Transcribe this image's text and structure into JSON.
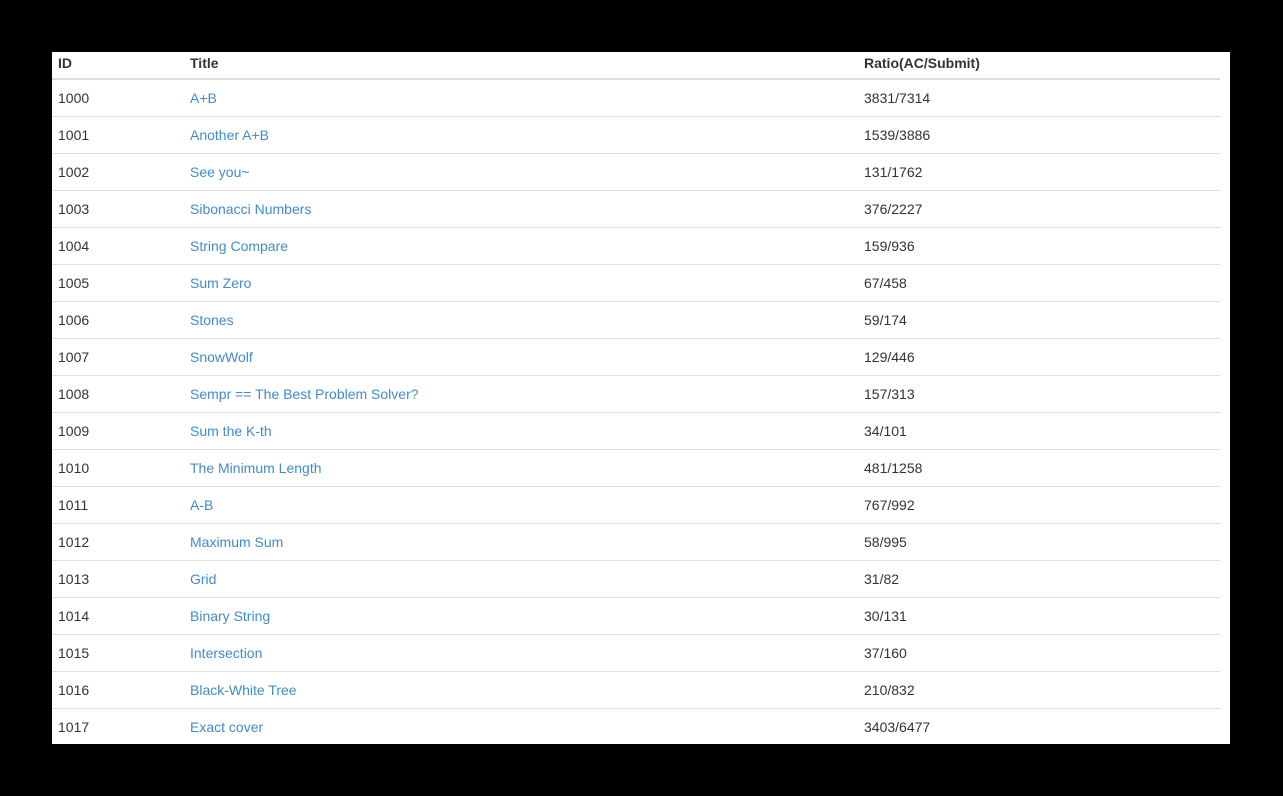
{
  "table": {
    "headers": {
      "id": "ID",
      "title": "Title",
      "ratio": "Ratio(AC/Submit)"
    },
    "rows": [
      {
        "id": "1000",
        "title": "A+B",
        "ratio": "3831/7314"
      },
      {
        "id": "1001",
        "title": "Another A+B",
        "ratio": "1539/3886"
      },
      {
        "id": "1002",
        "title": "See you~",
        "ratio": "131/1762"
      },
      {
        "id": "1003",
        "title": "Sibonacci Numbers",
        "ratio": "376/2227"
      },
      {
        "id": "1004",
        "title": "String Compare",
        "ratio": "159/936"
      },
      {
        "id": "1005",
        "title": "Sum Zero",
        "ratio": "67/458"
      },
      {
        "id": "1006",
        "title": "Stones",
        "ratio": "59/174"
      },
      {
        "id": "1007",
        "title": "SnowWolf",
        "ratio": "129/446"
      },
      {
        "id": "1008",
        "title": "Sempr == The Best Problem Solver?",
        "ratio": "157/313"
      },
      {
        "id": "1009",
        "title": "Sum the K-th",
        "ratio": "34/101"
      },
      {
        "id": "1010",
        "title": "The Minimum Length",
        "ratio": "481/1258"
      },
      {
        "id": "1011",
        "title": "A-B",
        "ratio": "767/992"
      },
      {
        "id": "1012",
        "title": "Maximum Sum",
        "ratio": "58/995"
      },
      {
        "id": "1013",
        "title": "Grid",
        "ratio": "31/82"
      },
      {
        "id": "1014",
        "title": "Binary String",
        "ratio": "30/131"
      },
      {
        "id": "1015",
        "title": "Intersection",
        "ratio": "37/160"
      },
      {
        "id": "1016",
        "title": "Black-White Tree",
        "ratio": "210/832"
      },
      {
        "id": "1017",
        "title": "Exact cover",
        "ratio": "3403/6477"
      }
    ]
  },
  "colors": {
    "link": "#428bca",
    "text": "#333333",
    "border": "#dddddd"
  }
}
